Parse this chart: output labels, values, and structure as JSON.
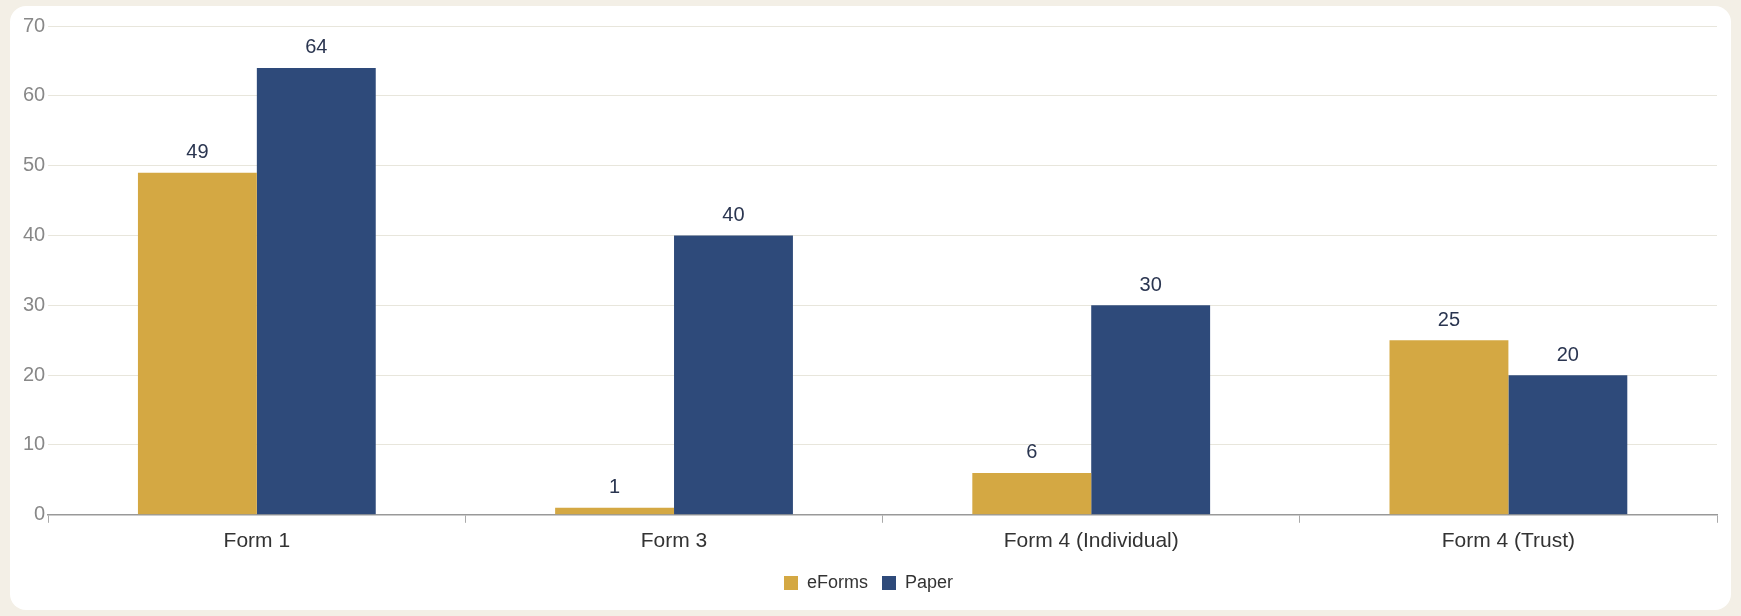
{
  "chart_data": {
    "type": "bar",
    "categories": [
      "Form 1",
      "Form 3",
      "Form 4 (Individual)",
      "Form 4 (Trust)"
    ],
    "series": [
      {
        "name": "eForms",
        "color": "#d4a843",
        "values": [
          49,
          1,
          6,
          25
        ]
      },
      {
        "name": "Paper",
        "color": "#2e4a7a",
        "values": [
          64,
          40,
          30,
          20
        ]
      }
    ],
    "ylim": [
      0,
      70
    ],
    "yticks": [
      0,
      10,
      20,
      30,
      40,
      50,
      60,
      70
    ],
    "grid": "y",
    "legend": "bottom",
    "data_labels": true
  }
}
